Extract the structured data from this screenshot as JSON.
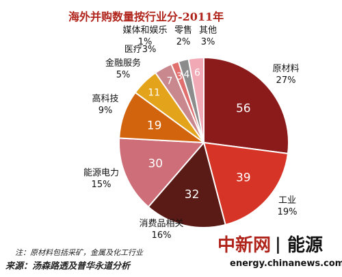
{
  "chart_data": {
    "type": "pie",
    "title": "海外并购数量按行业分-2011年",
    "slices": [
      {
        "name": "原材料",
        "value": 56,
        "percent": "27%",
        "color": "#8B1A1A"
      },
      {
        "name": "工业",
        "value": 39,
        "percent": "19%",
        "color": "#D63426"
      },
      {
        "name": "消费品相关",
        "value": 32,
        "percent": "16%",
        "color": "#5A1B16"
      },
      {
        "name": "能源电力",
        "value": 30,
        "percent": "15%",
        "color": "#CD6E79"
      },
      {
        "name": "高科技",
        "value": 19,
        "percent": "9%",
        "color": "#D2640D"
      },
      {
        "name": "金融服务",
        "value": 11,
        "percent": "5%",
        "color": "#E3A31A"
      },
      {
        "name": "医疗",
        "value": 7,
        "percent": "3%",
        "color": "#C9888E"
      },
      {
        "name": "媒体和娱乐",
        "value": 3,
        "percent": "1%",
        "color": "#E16F6E"
      },
      {
        "name": "零售",
        "value": 4,
        "percent": "2%",
        "color": "#8C8C8C"
      },
      {
        "name": "其他",
        "value": 6,
        "percent": "3%",
        "color": "#F1A9B6"
      }
    ]
  },
  "footer": {
    "note": "注：原材料包括采矿，金属及化工行业",
    "source": "来源：汤森路透及普华永道分析"
  },
  "watermark": {
    "brand_left": "中新网",
    "brand_divider": "|",
    "brand_right": "能源",
    "url": "energy.chinanews.com"
  }
}
